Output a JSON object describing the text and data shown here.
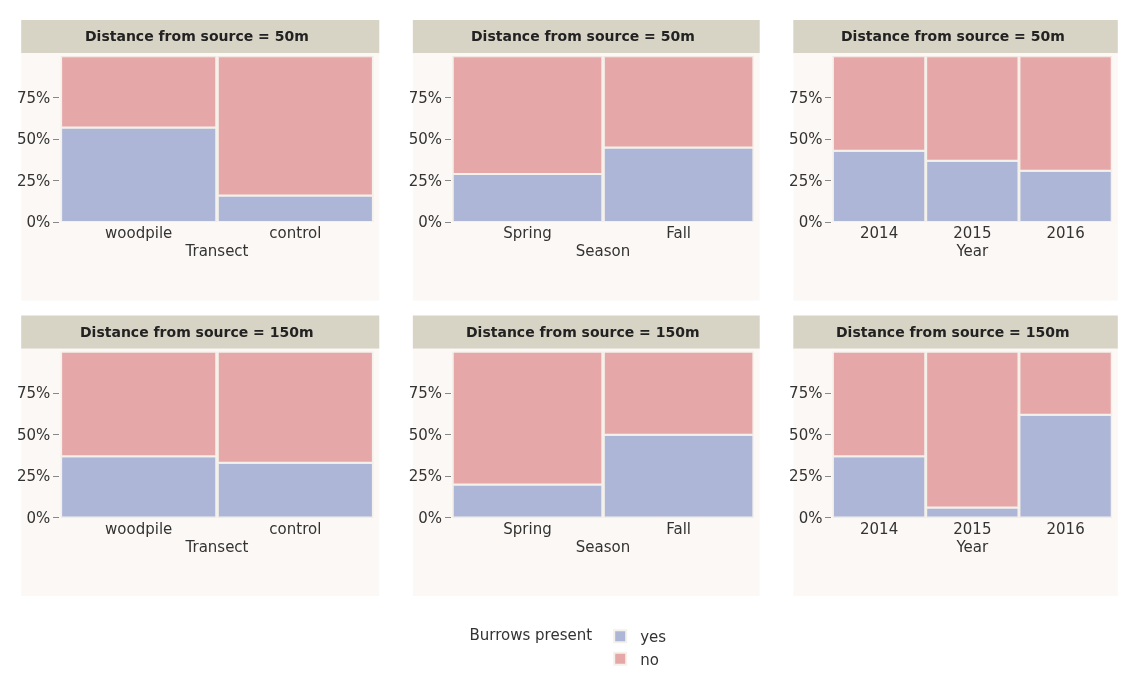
{
  "chart_data": [
    {
      "type": "bar",
      "stacked": true,
      "title": "Distance from source = 50m",
      "xlabel": "Transect",
      "categories": [
        "woodpile",
        "control"
      ],
      "ylim": [
        0,
        100
      ],
      "yticks": [
        {
          "value": 0,
          "label": "0%"
        },
        {
          "value": 25,
          "label": "25%"
        },
        {
          "value": 50,
          "label": "50%"
        },
        {
          "value": 75,
          "label": "75%"
        }
      ],
      "legend": "bottom",
      "legend_title": "Burrows present",
      "series": [
        {
          "name": "yes",
          "color": "#aeb6d8",
          "values": [
            57,
            16
          ]
        },
        {
          "name": "no",
          "color": "#e6a7a8",
          "values": [
            43,
            84
          ]
        }
      ]
    },
    {
      "type": "bar",
      "stacked": true,
      "title": "Distance from source = 50m",
      "xlabel": "Season",
      "categories": [
        "Spring",
        "Fall"
      ],
      "ylim": [
        0,
        100
      ],
      "yticks": [
        {
          "value": 0,
          "label": "0%"
        },
        {
          "value": 25,
          "label": "25%"
        },
        {
          "value": 50,
          "label": "50%"
        },
        {
          "value": 75,
          "label": "75%"
        }
      ],
      "series": [
        {
          "color": "#aeb6d8",
          "values": [
            29,
            45
          ]
        },
        {
          "color": "#e6a7a8",
          "values": [
            71,
            55
          ]
        }
      ]
    },
    {
      "type": "bar",
      "stacked": true,
      "title": "Distance from source = 50m",
      "xlabel": "Year",
      "categories": [
        "2014",
        "2015",
        "2016"
      ],
      "ylim": [
        0,
        100
      ],
      "yticks": [
        {
          "value": 0,
          "label": "0%"
        },
        {
          "value": 25,
          "label": "25%"
        },
        {
          "value": 50,
          "label": "50%"
        },
        {
          "value": 75,
          "label": "75%"
        }
      ],
      "series": [
        {
          "color": "#aeb6d8",
          "values": [
            43,
            37,
            31
          ]
        },
        {
          "color": "#e6a7a8",
          "values": [
            57,
            63,
            69
          ]
        }
      ]
    },
    {
      "type": "bar",
      "stacked": true,
      "title": "Distance from source = 150m",
      "xlabel": "Transect",
      "categories": [
        "woodpile",
        "control"
      ],
      "ylim": [
        0,
        100
      ],
      "yticks": [
        {
          "value": 0,
          "label": "0%"
        },
        {
          "value": 25,
          "label": "25%"
        },
        {
          "value": 50,
          "label": "50%"
        },
        {
          "value": 75,
          "label": "75%"
        }
      ],
      "series": [
        {
          "color": "#aeb6d8",
          "values": [
            37,
            33
          ]
        },
        {
          "color": "#e6a7a8",
          "values": [
            63,
            67
          ]
        }
      ]
    },
    {
      "type": "bar",
      "stacked": true,
      "title": "Distance from source = 150m",
      "xlabel": "Season",
      "categories": [
        "Spring",
        "Fall"
      ],
      "ylim": [
        0,
        100
      ],
      "yticks": [
        {
          "value": 0,
          "label": "0%"
        },
        {
          "value": 25,
          "label": "25%"
        },
        {
          "value": 50,
          "label": "50%"
        },
        {
          "value": 75,
          "label": "75%"
        }
      ],
      "series": [
        {
          "color": "#aeb6d8",
          "values": [
            20,
            50
          ]
        },
        {
          "color": "#e6a7a8",
          "values": [
            80,
            50
          ]
        }
      ]
    },
    {
      "type": "bar",
      "stacked": true,
      "title": "Distance from source = 150m",
      "xlabel": "Year",
      "categories": [
        "2014",
        "2015",
        "2016"
      ],
      "ylim": [
        0,
        100
      ],
      "yticks": [
        {
          "value": 0,
          "label": "0%"
        },
        {
          "value": 25,
          "label": "25%"
        },
        {
          "value": 50,
          "label": "50%"
        },
        {
          "value": 75,
          "label": "75%"
        }
      ],
      "series": [
        {
          "color": "#aeb6d8",
          "values": [
            37,
            6,
            62
          ]
        },
        {
          "color": "#e6a7a8",
          "values": [
            63,
            94,
            38
          ]
        }
      ]
    }
  ]
}
